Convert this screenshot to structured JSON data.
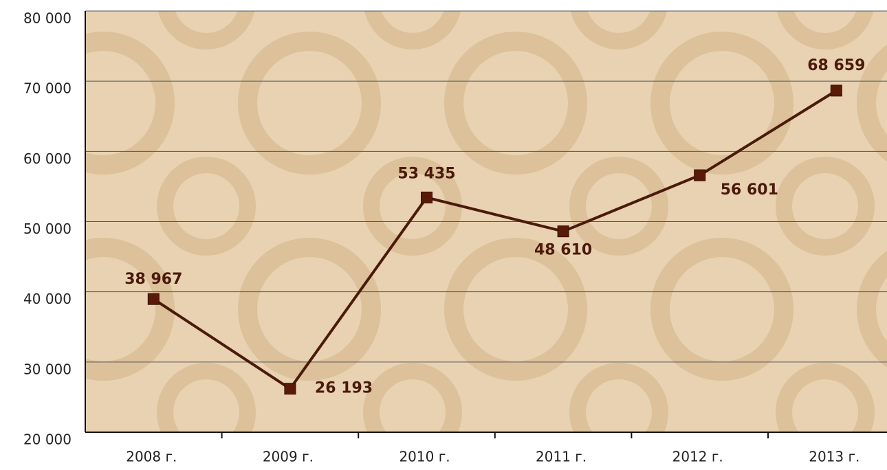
{
  "chart_data": {
    "type": "line",
    "categories": [
      "2008 г.",
      "2009 г.",
      "2010 г.",
      "2011 г.",
      "2012 г.",
      "2013 г."
    ],
    "series": [
      {
        "name": null,
        "color": "#4a1a0a",
        "values": [
          38967,
          26193,
          53435,
          48610,
          56601,
          68659
        ],
        "value_labels": [
          "38 967",
          "26 193",
          "53 435",
          "48 610",
          "56 601",
          "68 659"
        ]
      }
    ],
    "ylim": [
      20000,
      80000
    ],
    "yticks": [
      {
        "value": 20000,
        "label": "20 000"
      },
      {
        "value": 30000,
        "label": "30 000"
      },
      {
        "value": 40000,
        "label": "40 000"
      },
      {
        "value": 50000,
        "label": "50 000"
      },
      {
        "value": 60000,
        "label": "60 000"
      },
      {
        "value": 70000,
        "label": "70 000"
      },
      {
        "value": 80000,
        "label": "80 000"
      }
    ],
    "grid": true
  }
}
